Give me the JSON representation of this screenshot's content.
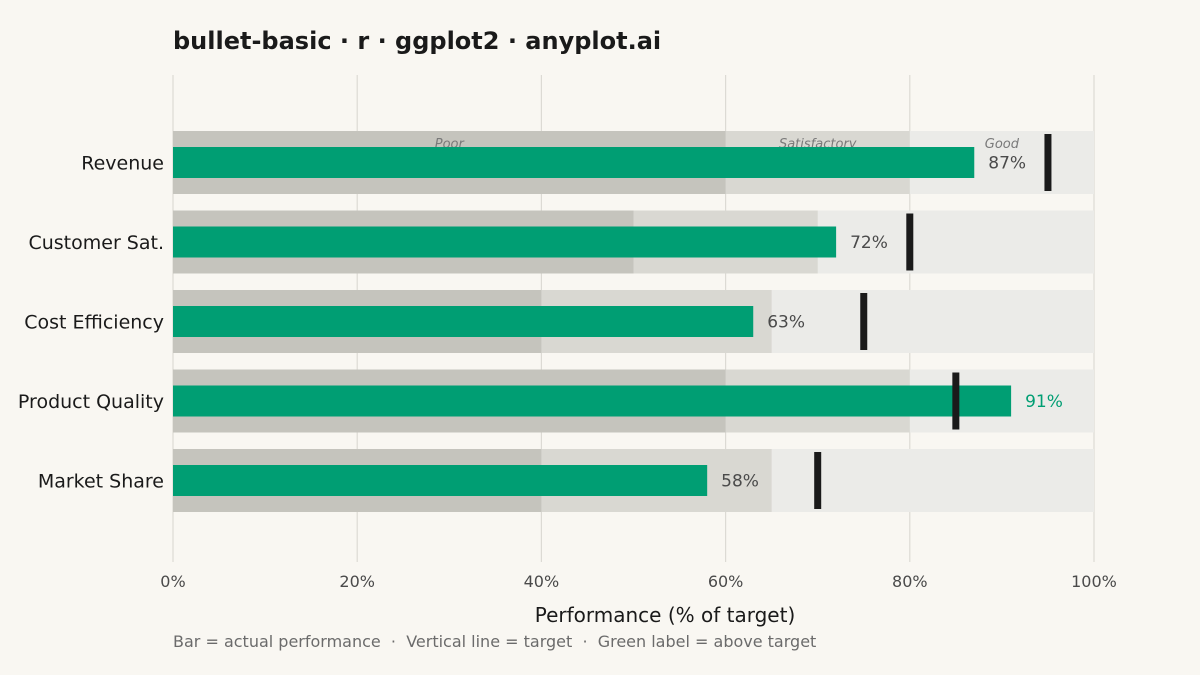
{
  "chart_data": {
    "type": "bullet",
    "title": "bullet-basic · r · ggplot2 · anyplot.ai",
    "xlabel": "Performance (% of target)",
    "caption": "Bar = actual performance  ·  Vertical line = target  ·  Green label = above target",
    "xlim": [
      0,
      100
    ],
    "x_ticks": [
      0,
      20,
      40,
      60,
      80,
      100
    ],
    "x_tick_labels": [
      "0%",
      "20%",
      "40%",
      "60%",
      "80%",
      "100%"
    ],
    "band_labels": [
      "Poor",
      "Satisfactory",
      "Good"
    ],
    "grid": "vertical",
    "colors": {
      "background": "#f9f7f2",
      "band_poor": "#c5c4bd",
      "band_satisfactory": "#d9d8d2",
      "band_good": "#ebebe8",
      "bar": "#009e73",
      "target": "#1a1a1a",
      "label_default": "#4a4a4a",
      "label_above_target": "#009e73",
      "gridline": "#dcdad4"
    },
    "metrics": [
      {
        "name": "Revenue",
        "value": 87,
        "label": "87%",
        "target": 95,
        "poor": 60,
        "satisfactory": 80
      },
      {
        "name": "Customer Sat.",
        "value": 72,
        "label": "72%",
        "target": 80,
        "poor": 50,
        "satisfactory": 70
      },
      {
        "name": "Cost Efficiency",
        "value": 63,
        "label": "63%",
        "target": 75,
        "poor": 40,
        "satisfactory": 65
      },
      {
        "name": "Product Quality",
        "value": 91,
        "label": "91%",
        "target": 85,
        "poor": 60,
        "satisfactory": 80
      },
      {
        "name": "Market Share",
        "value": 58,
        "label": "58%",
        "target": 70,
        "poor": 40,
        "satisfactory": 65
      }
    ]
  }
}
